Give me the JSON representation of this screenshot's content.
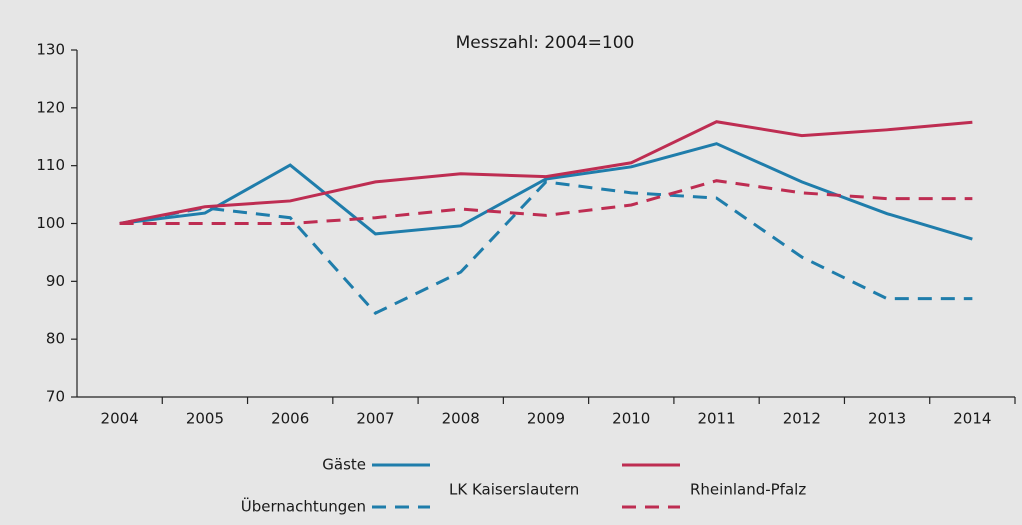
{
  "chart_data": {
    "type": "line",
    "title": "Messzahl: 2004=100",
    "categories": [
      "2004",
      "2005",
      "2006",
      "2007",
      "2008",
      "2009",
      "2010",
      "2011",
      "2012",
      "2013",
      "2014"
    ],
    "measures": [
      {
        "name": "Gäste",
        "dash": "solid"
      },
      {
        "name": "Übernachtungen",
        "dash": "dashed"
      }
    ],
    "series": [
      {
        "name": "LK Kaiserslautern",
        "color": "#1f7dab",
        "values": [
          [
            100,
            101.8,
            110.1,
            98.2,
            99.6,
            107.7,
            109.8,
            113.8,
            107.2,
            101.7,
            97.3
          ],
          [
            100,
            102.7,
            101,
            84.5,
            91.6,
            107.2,
            105.3,
            104.4,
            94.2,
            87,
            87
          ]
        ]
      },
      {
        "name": "Rheinland-Pfalz",
        "color": "#be2d52",
        "values": [
          [
            100,
            102.9,
            103.9,
            107.2,
            108.6,
            108.1,
            110.5,
            117.6,
            115.2,
            116.2,
            117.5
          ],
          [
            100,
            100,
            100,
            101,
            102.5,
            101.4,
            103.2,
            107.4,
            105.3,
            104.3,
            104.3
          ]
        ]
      }
    ],
    "ylim": [
      70,
      130
    ],
    "yticks": [
      70,
      80,
      90,
      100,
      110,
      120,
      130
    ],
    "grid": false
  }
}
